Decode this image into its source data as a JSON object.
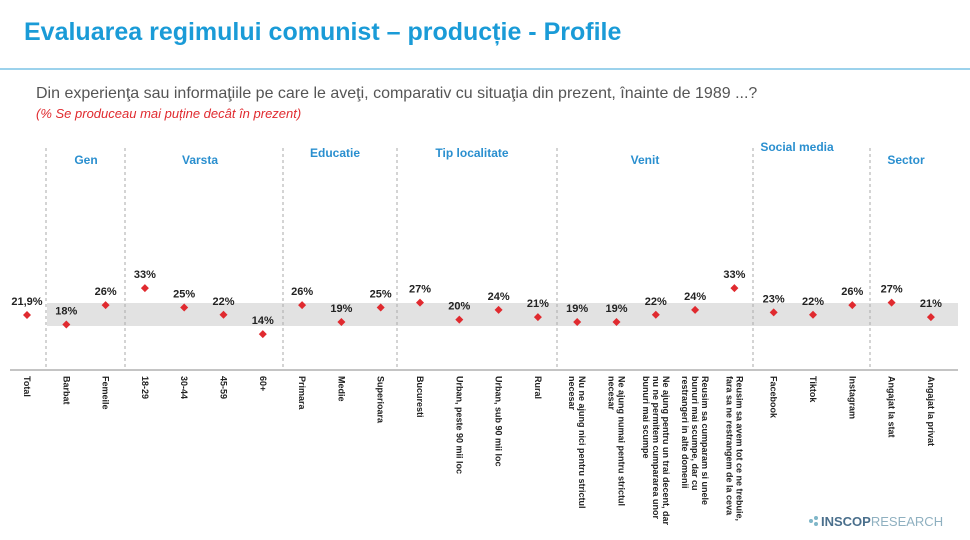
{
  "chart_data": {
    "type": "dot",
    "title": "Evaluarea regimului comunist – producție - Profile",
    "question": "Din experienţa sau informaţiile pe care le aveţi, comparativ cu situaţia din prezent, înainte de 1989 ...?",
    "subtitle": "(% Se produceau mai puține decât în prezent)",
    "groups": [
      "Gen",
      "Varsta",
      "Educatie",
      "Tip localitate",
      "Venit",
      "Social media",
      "Sector"
    ],
    "categories": [
      "Total",
      "Barbat",
      "Femeile",
      "18-29",
      "30-44",
      "45-59",
      "60+",
      "Primara",
      "Medie",
      "Superioara",
      "Bucuresti",
      "Urban, peste 90 mii loc",
      "Urban, sub 90 mii loc",
      "Rural",
      "Nu ne ajung nici pentru strictul necesar",
      "Ne ajung numai pentru strictul necesar",
      "Ne ajung pentru un trai decent, dar nu ne permitem cumpararea unor bunuri mai scumpe",
      "Reusim sa cumparam si unele bunuri mai scumpe, dar cu restrangeri in alte domenii",
      "Reusim sa avem tot ce ne trebuie, fara sa ne restrangem de la ceva",
      "Facebook",
      "Tiktok",
      "Instagram",
      "Angajat la stat",
      "Angajat la privat"
    ],
    "values": [
      21.9,
      18,
      26,
      33,
      25,
      22,
      14,
      26,
      19,
      25,
      27,
      20,
      24,
      21,
      19,
      19,
      22,
      24,
      33,
      23,
      22,
      26,
      27,
      21
    ],
    "value_labels": [
      "21,9%",
      "18%",
      "26%",
      "33%",
      "25%",
      "22%",
      "14%",
      "26%",
      "19%",
      "25%",
      "27%",
      "20%",
      "24%",
      "21%",
      "19%",
      "19%",
      "22%",
      "24%",
      "33%",
      "23%",
      "22%",
      "26%",
      "27%",
      "21%"
    ],
    "color": "#e02a2f",
    "logo": {
      "bold": "INSCOP",
      "light": "RESEARCH"
    }
  }
}
